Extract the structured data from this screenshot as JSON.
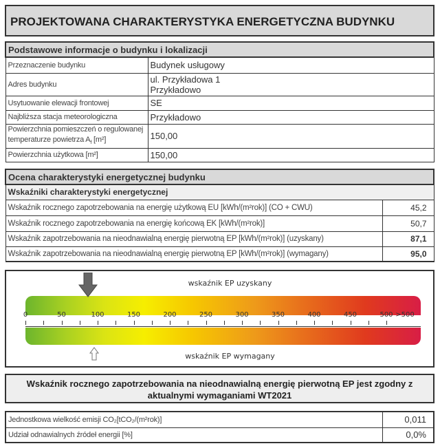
{
  "title": "PROJEKTOWANA CHARAKTERYSTYKA ENERGETYCZNA BUDYNKU",
  "basic_info": {
    "header": "Podstawowe informacje o budynku i lokalizacji",
    "rows": [
      {
        "label": "Przeznaczenie budynku",
        "value": "Budynek usługowy"
      },
      {
        "label": "Adres budynku",
        "value": "ul. Przykładowa 1",
        "value2": "Przykładowo"
      },
      {
        "label": "Usytuowanie elewacji frontowej",
        "value": "SE"
      },
      {
        "label": "Najbliższa stacja meteorologiczna",
        "value": "Przykładowo"
      },
      {
        "label": "Powierzchnia pomieszczeń o regulowanej temperaturze powietrza A",
        "label_sub": "f",
        "label_unit": "[m²]",
        "value": "150,00"
      },
      {
        "label": "Powierzchnia użytkowa [m²]",
        "value": "150,00"
      }
    ]
  },
  "assessment": {
    "header": "Ocena charakterystyki energetycznej budynku",
    "subheader": "Wskaźniki charakterystyki energetycznej",
    "rows": [
      {
        "label": "Wskaźnik rocznego zapotrzebowania na energię użytkową EU [kWh/(m²rok)] (CO + CWU)",
        "value": "45,2"
      },
      {
        "label": "Wskaźnik rocznego zapotrzebowania na energię końcową EK [kWh/(m²rok)]",
        "value": "50,7"
      },
      {
        "label": "Wskaźnik zapotrzebowania na nieodnawialną energię pierwotną EP [kWh/(m²rok)] (uzyskany)",
        "value": "87,1"
      },
      {
        "label": "Wskaźnik zapotrzebowania na nieodnawialną energię pierwotną EP [kWh/(m²rok)] (wymagany)",
        "value": "95,0"
      }
    ]
  },
  "scale": {
    "label_obtained": "wskaźnik EP uzyskany",
    "label_required": "wskaźnik EP wymagany",
    "ep_obtained": 87.1,
    "ep_required": 95.0,
    "ticks": [
      "0",
      "50",
      "100",
      "150",
      "200",
      "250",
      "300",
      "350",
      "400",
      "450",
      "500",
      ">500"
    ],
    "range": [
      0,
      500
    ],
    "colors": {
      "low": "#6cb52d",
      "mid": "#f6ee00",
      "high": "#d81e46"
    }
  },
  "compliance": {
    "line1": "Wskaźnik rocznego zapotrzebowania na nieodnawialną energię pierwotną EP jest zgodny z",
    "line2": "aktualnymi wymaganiami WT2021"
  },
  "emissions": {
    "rows": [
      {
        "label": "Jednostkowa wielkość emisji CO₂[tCO₂/(m²rok)]",
        "value": "0,011"
      },
      {
        "label": "Udział odnawialnych źródeł energii [%]",
        "value": "0,0%"
      }
    ]
  }
}
